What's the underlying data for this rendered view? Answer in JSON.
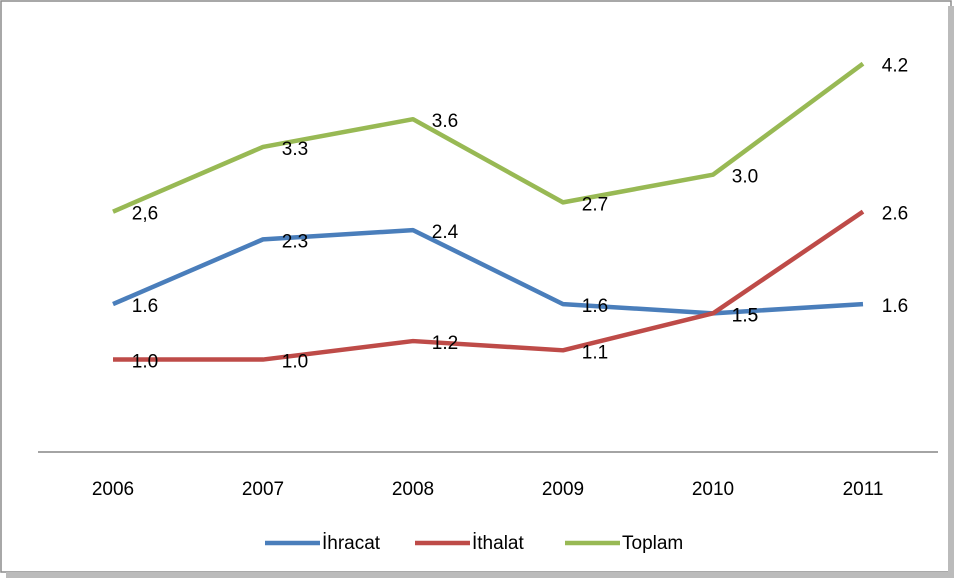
{
  "chart_data": {
    "type": "line",
    "categories": [
      "2006",
      "2007",
      "2008",
      "2009",
      "2010",
      "2011"
    ],
    "series": [
      {
        "name": "İhracat",
        "color": "#4a7ebb",
        "values": [
          1.6,
          2.3,
          2.4,
          1.6,
          1.5,
          1.6
        ],
        "value_labels": [
          "1.6",
          "2.3",
          "2.4",
          "1.6",
          "1.5",
          "1.6"
        ]
      },
      {
        "name": "İthalat",
        "color": "#be4b48",
        "values": [
          1.0,
          1.0,
          1.2,
          1.1,
          1.5,
          2.6
        ],
        "value_labels": [
          "1.0",
          "1.0",
          "1.2",
          "1.1",
          "1.5",
          "2.6"
        ]
      },
      {
        "name": "Toplam",
        "color": "#98b954",
        "values": [
          2.6,
          3.3,
          3.6,
          2.7,
          3.0,
          4.2
        ],
        "value_labels": [
          "2,6",
          "3.3",
          "3.6",
          "2.7",
          "3.0",
          "4.2"
        ]
      }
    ],
    "ylim": [
      0,
      4.5
    ],
    "legend": "bottom"
  }
}
